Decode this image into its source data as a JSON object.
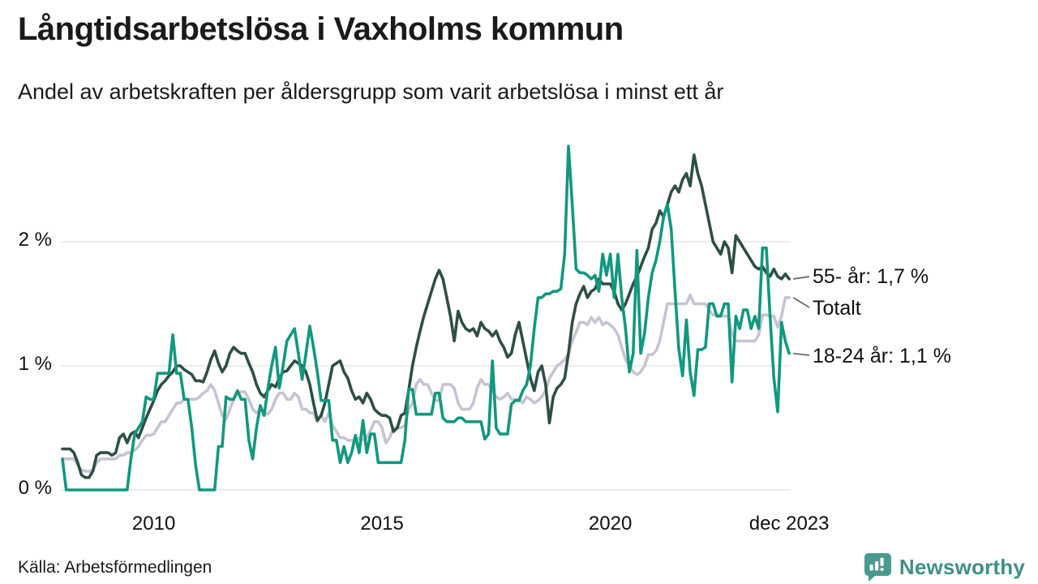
{
  "header": {
    "title": "Långtidsarbetslösa i Vaxholms kommun",
    "subtitle": "Andel av arbetskraften per åldersgrupp som varit arbetslösa i minst ett år"
  },
  "chart_data": {
    "type": "line",
    "title": "Långtidsarbetslösa i Vaxholms kommun",
    "xlabel": "",
    "ylabel": "Andel av arbetskraften (%)",
    "x_start": "2008-01",
    "x_end": "2023-12",
    "x_frequency": "monthly",
    "ylim": [
      0,
      2.85
    ],
    "grid": "horizontal",
    "legend_position": "end-of-line",
    "y_ticks": [
      {
        "v": 0,
        "label": "0 %"
      },
      {
        "v": 1,
        "label": "1 %"
      },
      {
        "v": 2,
        "label": "2 %"
      }
    ],
    "x_ticks": [
      {
        "t": 2010.0,
        "label": "2010"
      },
      {
        "t": 2015.0,
        "label": "2015"
      },
      {
        "t": 2020.0,
        "label": "2020"
      },
      {
        "t": 2023.917,
        "label": "dec 2023"
      }
    ],
    "series": [
      {
        "name": "55- år",
        "end_label": "55- år: 1,7 %",
        "end_value_text": "1,7 %",
        "color": "#2d4f45",
        "values": [
          0.33,
          0.33,
          0.33,
          0.3,
          0.22,
          0.12,
          0.1,
          0.1,
          0.15,
          0.28,
          0.3,
          0.3,
          0.3,
          0.28,
          0.3,
          0.42,
          0.45,
          0.38,
          0.45,
          0.47,
          0.42,
          0.5,
          0.58,
          0.65,
          0.72,
          0.8,
          0.85,
          0.88,
          0.92,
          0.95,
          1.0,
          1.0,
          0.97,
          0.95,
          0.93,
          0.88,
          0.88,
          0.87,
          0.95,
          1.05,
          1.12,
          1.02,
          0.95,
          1.0,
          1.1,
          1.15,
          1.12,
          1.1,
          1.1,
          1.02,
          0.95,
          0.85,
          0.78,
          0.75,
          0.8,
          0.85,
          0.83,
          0.9,
          0.95,
          0.96,
          1.0,
          1.04,
          1.02,
          1.0,
          0.95,
          0.85,
          0.7,
          0.56,
          0.6,
          0.7,
          0.85,
          1.0,
          1.02,
          1.04,
          0.95,
          0.9,
          0.8,
          0.73,
          0.75,
          0.7,
          0.78,
          0.73,
          0.65,
          0.62,
          0.6,
          0.6,
          0.58,
          0.47,
          0.5,
          0.6,
          0.62,
          0.8,
          1.0,
          1.15,
          1.28,
          1.4,
          1.5,
          1.6,
          1.7,
          1.77,
          1.7,
          1.55,
          1.4,
          1.2,
          1.44,
          1.35,
          1.3,
          1.28,
          1.3,
          1.24,
          1.35,
          1.3,
          1.28,
          1.24,
          1.28,
          1.2,
          1.15,
          1.07,
          1.1,
          1.25,
          1.35,
          1.2,
          1.05,
          0.9,
          0.8,
          0.95,
          1.0,
          0.85,
          0.54,
          0.75,
          0.82,
          0.85,
          0.9,
          1.1,
          1.35,
          1.5,
          1.58,
          1.64,
          1.55,
          1.6,
          1.62,
          1.7,
          1.66,
          1.66,
          1.66,
          1.6,
          1.5,
          1.45,
          1.5,
          1.58,
          1.66,
          1.72,
          1.8,
          1.88,
          1.95,
          2.1,
          2.15,
          2.25,
          2.2,
          2.3,
          2.4,
          2.45,
          2.4,
          2.5,
          2.55,
          2.45,
          2.7,
          2.55,
          2.45,
          2.3,
          2.15,
          2.0,
          1.95,
          1.9,
          2.0,
          1.95,
          1.75,
          2.05,
          2.0,
          1.95,
          1.9,
          1.85,
          1.8,
          1.78,
          1.8,
          1.75,
          1.72,
          1.78,
          1.72,
          1.7,
          1.74,
          1.7
        ]
      },
      {
        "name": "Totalt",
        "end_label": "Totalt",
        "end_value_text": "",
        "color": "#c6c4d2",
        "values": [
          0.25,
          0.25,
          0.25,
          0.25,
          0.2,
          0.16,
          0.15,
          0.15,
          0.16,
          0.22,
          0.25,
          0.25,
          0.25,
          0.25,
          0.25,
          0.28,
          0.28,
          0.3,
          0.3,
          0.32,
          0.35,
          0.4,
          0.44,
          0.44,
          0.45,
          0.5,
          0.55,
          0.55,
          0.6,
          0.65,
          0.7,
          0.7,
          0.73,
          0.73,
          0.73,
          0.73,
          0.75,
          0.78,
          0.8,
          0.85,
          0.8,
          0.7,
          0.6,
          0.57,
          0.65,
          0.73,
          0.78,
          0.79,
          0.79,
          0.73,
          0.65,
          0.62,
          0.65,
          0.62,
          0.61,
          0.65,
          0.73,
          0.78,
          0.78,
          0.73,
          0.73,
          0.78,
          0.75,
          0.65,
          0.65,
          0.62,
          0.62,
          0.55,
          0.6,
          0.55,
          0.62,
          0.52,
          0.47,
          0.42,
          0.42,
          0.4,
          0.4,
          0.4,
          0.42,
          0.4,
          0.42,
          0.48,
          0.55,
          0.55,
          0.5,
          0.38,
          0.42,
          0.5,
          0.5,
          0.5,
          0.52,
          0.65,
          0.7,
          0.85,
          0.89,
          0.85,
          0.85,
          0.78,
          0.72,
          0.72,
          0.85,
          0.85,
          0.85,
          0.82,
          0.7,
          0.65,
          0.65,
          0.65,
          0.7,
          0.82,
          0.89,
          0.85,
          0.85,
          0.8,
          0.75,
          0.73,
          0.75,
          0.78,
          0.73,
          0.73,
          0.73,
          0.7,
          0.75,
          0.73,
          0.7,
          0.72,
          0.75,
          0.8,
          0.9,
          0.95,
          1.0,
          1.02,
          1.05,
          1.1,
          1.2,
          1.27,
          1.35,
          1.35,
          1.33,
          1.39,
          1.35,
          1.39,
          1.33,
          1.35,
          1.33,
          1.3,
          1.25,
          1.15,
          1.05,
          1.0,
          0.95,
          0.93,
          0.95,
          1.0,
          1.09,
          1.09,
          1.12,
          1.2,
          1.35,
          1.5,
          1.5,
          1.5,
          1.5,
          1.5,
          1.5,
          1.57,
          1.5,
          1.5,
          1.5,
          1.5,
          1.45,
          1.41,
          1.41,
          1.41,
          1.4,
          1.4,
          1.26,
          1.2,
          1.2,
          1.2,
          1.2,
          1.2,
          1.2,
          1.25,
          1.41,
          1.41,
          1.4,
          1.4,
          1.31,
          1.4,
          1.55,
          1.55
        ]
      },
      {
        "name": "18-24 år",
        "end_label": "18-24 år: 1,1 %",
        "end_value_text": "1,1 %",
        "color": "#11987e",
        "values": [
          0.25,
          0.0,
          0.0,
          0.0,
          0.0,
          0.0,
          0.0,
          0.0,
          0.0,
          0.0,
          0.0,
          0.0,
          0.0,
          0.0,
          0.0,
          0.0,
          0.0,
          0.0,
          0.25,
          0.45,
          0.5,
          0.55,
          0.75,
          0.73,
          0.73,
          0.94,
          0.94,
          0.94,
          0.94,
          1.25,
          0.94,
          0.94,
          0.73,
          0.73,
          0.5,
          0.2,
          0.0,
          0.0,
          0.0,
          0.0,
          0.0,
          0.35,
          0.35,
          0.75,
          0.73,
          0.73,
          0.8,
          0.73,
          0.73,
          0.4,
          0.25,
          0.5,
          0.68,
          0.6,
          0.82,
          1.0,
          1.15,
          0.82,
          1.0,
          1.2,
          1.25,
          1.3,
          1.1,
          0.89,
          1.1,
          1.32,
          1.15,
          0.95,
          0.72,
          0.72,
          0.72,
          0.4,
          0.4,
          0.22,
          0.35,
          0.22,
          0.3,
          0.44,
          0.3,
          0.56,
          0.3,
          0.45,
          0.45,
          0.22,
          0.22,
          0.22,
          0.22,
          0.22,
          0.22,
          0.22,
          0.4,
          0.81,
          0.81,
          0.61,
          0.61,
          0.61,
          0.61,
          0.61,
          0.78,
          0.78,
          0.58,
          0.55,
          0.55,
          0.55,
          0.58,
          0.58,
          0.55,
          0.55,
          0.55,
          0.55,
          0.55,
          0.41,
          0.45,
          1.04,
          0.5,
          0.45,
          0.45,
          0.45,
          0.69,
          0.72,
          0.72,
          0.8,
          0.85,
          1.0,
          1.3,
          1.55,
          1.55,
          1.58,
          1.58,
          1.6,
          1.6,
          1.62,
          1.9,
          2.77,
          2.3,
          1.78,
          1.75,
          1.75,
          1.73,
          1.7,
          1.73,
          1.6,
          1.9,
          1.73,
          1.9,
          1.55,
          1.9,
          1.55,
          1.3,
          0.95,
          1.1,
          1.93,
          1.1,
          1.26,
          1.55,
          1.75,
          1.85,
          2.0,
          2.2,
          2.3,
          2.1,
          1.6,
          1.14,
          0.92,
          1.37,
          0.95,
          0.76,
          1.13,
          1.13,
          1.15,
          1.5,
          1.5,
          1.4,
          1.4,
          1.5,
          1.5,
          0.87,
          1.4,
          1.3,
          1.45,
          1.45,
          1.3,
          1.4,
          1.3,
          1.95,
          1.95,
          1.4,
          0.9,
          0.63,
          1.35,
          1.2,
          1.1
        ]
      }
    ],
    "gridline_color": "#e6e5e9"
  },
  "footer": {
    "source": "Källa: Arbetsförmedlingen",
    "brand": "Newsworthy"
  }
}
